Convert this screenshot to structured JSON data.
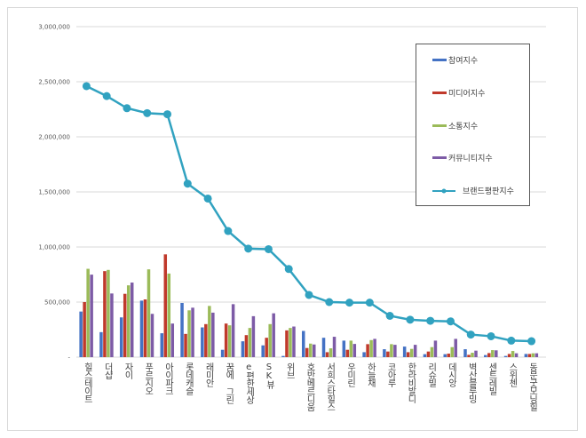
{
  "chart_data": {
    "type": "bar+line",
    "categories": [
      "힐스테이트",
      "더샵",
      "자이",
      "푸르지오",
      "아이파크",
      "롯데캐슬",
      "래미안",
      "꿈에 그린",
      "e편한세상",
      "SK뷰",
      "위브",
      "호반베르디움",
      "서희스타힐스",
      "우미린",
      "하늘채",
      "코아루",
      "한라비발디",
      "리슈빌",
      "데시앙",
      "벽산블루밍",
      "센트레빌",
      "스위첸",
      "동문굿모닝힐"
    ],
    "ylim": [
      0,
      3000000
    ],
    "yticks": [
      "-",
      "500,000",
      "1,000,000",
      "1,500,000",
      "2,000,000",
      "2,500,000",
      "3,000,000"
    ],
    "grid": true,
    "legend_position": "top-right",
    "series": [
      {
        "name": "참여지수",
        "type": "bar",
        "color": "#4472C4",
        "values": [
          414000,
          227000,
          361000,
          513000,
          217000,
          492000,
          270000,
          67000,
          144000,
          107000,
          11000,
          238000,
          176000,
          150000,
          45000,
          72000,
          96000,
          27000,
          27000,
          72000,
          19000,
          11000,
          29000
        ]
      },
      {
        "name": "미디어지수",
        "type": "bar",
        "color": "#C0392B",
        "values": [
          500000,
          781000,
          575000,
          524000,
          933000,
          211000,
          300000,
          305000,
          200000,
          176000,
          243000,
          83000,
          45000,
          67000,
          118000,
          51000,
          45000,
          51000,
          32000,
          21000,
          37000,
          29000,
          29000
        ]
      },
      {
        "name": "소통지수",
        "type": "bar",
        "color": "#9BBB59",
        "values": [
          802000,
          792000,
          652000,
          797000,
          759000,
          425000,
          465000,
          289000,
          265000,
          300000,
          265000,
          123000,
          80000,
          150000,
          155000,
          118000,
          75000,
          91000,
          91000,
          40000,
          64000,
          56000,
          35000
        ]
      },
      {
        "name": "커뮤니티지수",
        "type": "bar",
        "color": "#7D5BA6",
        "values": [
          749000,
          578000,
          677000,
          393000,
          305000,
          449000,
          404000,
          481000,
          372000,
          398000,
          278000,
          115000,
          185000,
          120000,
          166000,
          112000,
          112000,
          150000,
          166000,
          59000,
          62000,
          35000,
          35000
        ]
      },
      {
        "name": "브랜드평판지수",
        "type": "line",
        "color": "#31A2C0",
        "values": [
          2460000,
          2370000,
          2260000,
          2215000,
          2205000,
          1575000,
          1440000,
          1145000,
          985000,
          980000,
          800000,
          565000,
          500000,
          495000,
          495000,
          375000,
          340000,
          330000,
          325000,
          205000,
          190000,
          150000,
          145000
        ]
      }
    ]
  }
}
